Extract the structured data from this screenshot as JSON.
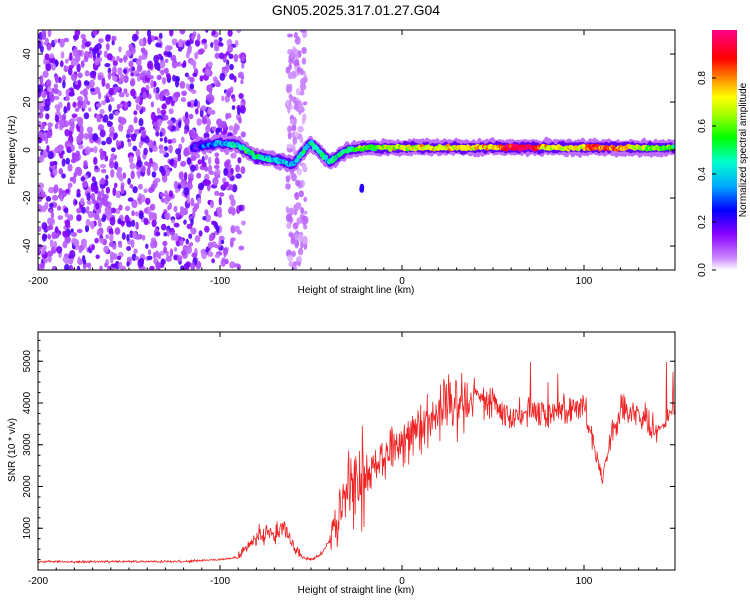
{
  "title": "GN05.2025.317.01.27.G04",
  "chart_data": [
    {
      "type": "heatmap",
      "xlabel": "Height of straight line (km)",
      "ylabel": "Frequency (Hz)",
      "xlim": [
        -200,
        150
      ],
      "ylim": [
        -50,
        50
      ],
      "xticks": [
        -200,
        -100,
        0,
        100
      ],
      "yticks": [
        -40,
        -20,
        0,
        20,
        40
      ],
      "colorbar": {
        "label": "Normalized spectral amplitude",
        "range": [
          0,
          1
        ],
        "ticks": [
          "0.0",
          "0.2",
          "0.4",
          "0.6",
          "0.8"
        ],
        "colors": [
          "#ffffff",
          "#cc88ff",
          "#8800ff",
          "#0000ff",
          "#00ffff",
          "#00ff00",
          "#ffff00",
          "#ff8800",
          "#ff0000",
          "#ff00aa"
        ]
      },
      "features": [
        {
          "name": "scattered noise",
          "x_range": [
            -200,
            -87
          ],
          "freq_range": [
            -50,
            50
          ],
          "amplitude": 0.15
        },
        {
          "name": "noise streak",
          "x_range": [
            -63,
            -53
          ],
          "freq_range": [
            -50,
            50
          ],
          "amplitude": 0.1
        },
        {
          "name": "signal ridge",
          "x": [
            -115,
            -100,
            -90,
            -80,
            -70,
            -60,
            -50,
            -40,
            -30,
            -20,
            0,
            50,
            100,
            150
          ],
          "freq": [
            1,
            3,
            2,
            -3,
            -4,
            -6,
            3,
            -5,
            0,
            1,
            1,
            1,
            1,
            1
          ],
          "amplitude": [
            0.2,
            0.35,
            0.45,
            0.45,
            0.4,
            0.35,
            0.45,
            0.45,
            0.5,
            0.55,
            0.7,
            0.75,
            0.7,
            0.6
          ]
        }
      ]
    },
    {
      "type": "line",
      "xlabel": "Height of straight line (km)",
      "ylabel": "SNR (10 * v/v)",
      "xlim": [
        -200,
        150
      ],
      "ylim": [
        0,
        5700
      ],
      "xticks": [
        -200,
        -100,
        0,
        100
      ],
      "yticks": [
        1000,
        2000,
        3000,
        4000,
        5000
      ],
      "color": "#ee2222",
      "x": [
        -200,
        -180,
        -160,
        -140,
        -120,
        -100,
        -90,
        -85,
        -80,
        -75,
        -70,
        -65,
        -60,
        -55,
        -50,
        -45,
        -40,
        -35,
        -30,
        -25,
        -20,
        -15,
        -10,
        -5,
        0,
        10,
        20,
        30,
        40,
        50,
        60,
        70,
        80,
        90,
        100,
        110,
        115,
        120,
        130,
        140,
        150
      ],
      "y": [
        200,
        200,
        200,
        200,
        200,
        250,
        300,
        550,
        750,
        950,
        800,
        1050,
        600,
        300,
        250,
        350,
        700,
        1400,
        2000,
        2200,
        2200,
        2500,
        2700,
        3000,
        3100,
        3500,
        3800,
        4050,
        4250,
        4000,
        3600,
        3900,
        3700,
        3900,
        3950,
        2200,
        3200,
        3800,
        3700,
        3300,
        3900
      ]
    }
  ]
}
